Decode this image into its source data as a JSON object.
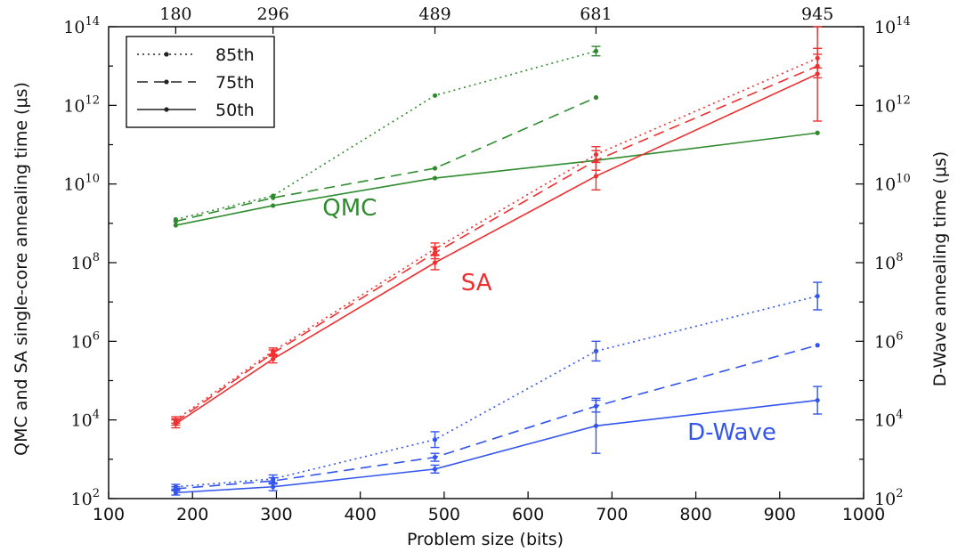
{
  "chart_data": {
    "type": "line",
    "xlabel": "Problem size (bits)",
    "ylabel_left": "QMC and SA single-core annealing time (μs)",
    "ylabel_right": "D-Wave annealing time (μs)",
    "xlim": [
      100,
      1000
    ],
    "ylim_log10": [
      2,
      14
    ],
    "y_scale": "log",
    "grid": false,
    "legend_position": "top-left",
    "x_ticks": [
      100,
      200,
      300,
      400,
      500,
      600,
      700,
      800,
      900,
      1000
    ],
    "y_tick_exponents": [
      2,
      4,
      6,
      8,
      10,
      12,
      14
    ],
    "top_axis": {
      "positions": [
        180,
        296,
        489,
        681,
        945
      ],
      "labels": [
        "180",
        "296",
        "489",
        "681",
        "945"
      ]
    },
    "legend": [
      {
        "label": "85th",
        "dash": "dotted"
      },
      {
        "label": "75th",
        "dash": "dashed"
      },
      {
        "label": "50th",
        "dash": "solid"
      }
    ],
    "groups": [
      {
        "label": "QMC",
        "color": "#2e8b2e",
        "label_at": {
          "x": 355,
          "y_log10": 9.2
        },
        "series": [
          {
            "percentile": "85th",
            "dash": "dotted",
            "x": [
              180,
              296,
              489,
              681
            ],
            "y_log10": [
              9.1,
              9.7,
              12.25,
              13.38
            ],
            "err": [
              0,
              0,
              0,
              0.12
            ]
          },
          {
            "percentile": "75th",
            "dash": "dashed",
            "x": [
              180,
              296,
              489,
              681
            ],
            "y_log10": [
              9.05,
              9.65,
              10.4,
              12.2
            ],
            "err": [
              0,
              0,
              0,
              0
            ]
          },
          {
            "percentile": "50th",
            "dash": "solid",
            "x": [
              180,
              296,
              489,
              681,
              945
            ],
            "y_log10": [
              8.95,
              9.45,
              10.15,
              10.6,
              11.3
            ],
            "err": [
              0,
              0,
              0,
              0,
              0
            ]
          }
        ]
      },
      {
        "label": "SA",
        "color": "#ee3030",
        "label_at": {
          "x": 520,
          "y_log10": 7.3
        },
        "series": [
          {
            "percentile": "85th",
            "dash": "dotted",
            "x": [
              180,
              296,
              489,
              681,
              945
            ],
            "y_log10": [
              4.0,
              5.75,
              8.35,
              10.75,
              13.2
            ],
            "err": [
              0.08,
              0.08,
              0.15,
              0.2,
              0.25
            ]
          },
          {
            "percentile": "75th",
            "dash": "dashed",
            "x": [
              180,
              296,
              489,
              681,
              945
            ],
            "y_log10": [
              3.95,
              5.7,
              8.25,
              10.6,
              13.0
            ],
            "err": [
              0.08,
              0.08,
              0.15,
              0.25,
              0.3
            ]
          },
          {
            "percentile": "50th",
            "dash": "solid",
            "x": [
              180,
              296,
              489,
              681,
              945
            ],
            "y_log10": [
              3.9,
              5.55,
              8.0,
              10.2,
              12.8
            ],
            "err": [
              0.1,
              0.1,
              0.18,
              0.35,
              1.2
            ]
          }
        ]
      },
      {
        "label": "D-Wave",
        "color": "#3355ee",
        "label_at": {
          "x": 790,
          "y_log10": 3.5
        },
        "series": [
          {
            "percentile": "85th",
            "dash": "dotted",
            "x": [
              180,
              296,
              489,
              681,
              945
            ],
            "y_log10": [
              2.3,
              2.5,
              3.5,
              5.75,
              7.15
            ],
            "err": [
              0.06,
              0.1,
              0.2,
              0.25,
              0.35
            ]
          },
          {
            "percentile": "75th",
            "dash": "dashed",
            "x": [
              180,
              296,
              489,
              681,
              945
            ],
            "y_log10": [
              2.25,
              2.45,
              3.05,
              4.35,
              5.9
            ],
            "err": [
              0.05,
              0.08,
              0.1,
              0.15,
              0
            ]
          },
          {
            "percentile": "50th",
            "dash": "solid",
            "x": [
              180,
              296,
              489,
              681,
              945
            ],
            "y_log10": [
              2.15,
              2.3,
              2.75,
              3.85,
              4.5
            ],
            "err": [
              0.06,
              0.1,
              0.1,
              0.7,
              0.35
            ]
          }
        ]
      }
    ]
  }
}
